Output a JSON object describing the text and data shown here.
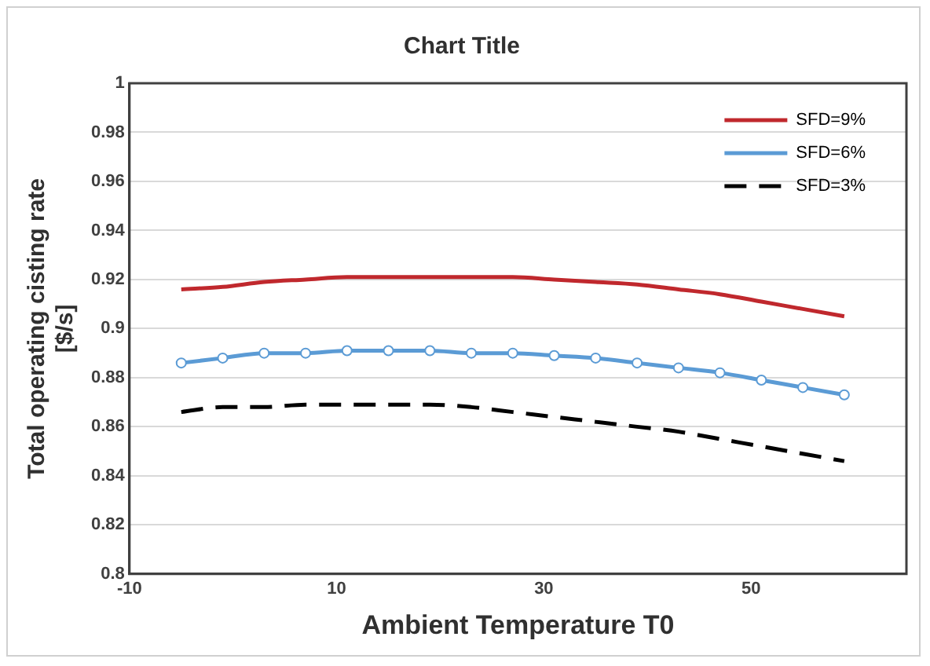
{
  "chart_data": {
    "type": "line",
    "title": "Chart Title",
    "xlabel": "Ambient Temperature T0",
    "ylabel": "Total operating cisting rate [$/s]",
    "x": [
      -5,
      -1,
      3,
      7,
      11,
      15,
      19,
      23,
      27,
      31,
      35,
      39,
      43,
      47,
      51,
      55,
      59
    ],
    "series": [
      {
        "name": "SFD=9%",
        "color": "#c0282d",
        "marker": "none",
        "line_style": "solid",
        "values": [
          0.916,
          0.917,
          0.919,
          0.92,
          0.921,
          0.921,
          0.921,
          0.921,
          0.921,
          0.92,
          0.919,
          0.918,
          0.916,
          0.914,
          0.911,
          0.908,
          0.905
        ]
      },
      {
        "name": "SFD=6%",
        "color": "#5b9bd5",
        "marker": "circle",
        "line_style": "solid",
        "values": [
          0.886,
          0.888,
          0.89,
          0.89,
          0.891,
          0.891,
          0.891,
          0.89,
          0.89,
          0.889,
          0.888,
          0.886,
          0.884,
          0.882,
          0.879,
          0.876,
          0.873
        ]
      },
      {
        "name": "SFD=3%",
        "color": "#000000",
        "marker": "none",
        "line_style": "dashed",
        "values": [
          0.866,
          0.868,
          0.868,
          0.869,
          0.869,
          0.869,
          0.869,
          0.868,
          0.866,
          0.864,
          0.862,
          0.86,
          0.858,
          0.855,
          0.852,
          0.849,
          0.846
        ]
      }
    ],
    "xlim": [
      -10,
      65
    ],
    "xticks": [
      -10,
      10,
      30,
      50
    ],
    "ylim": [
      0.8,
      1
    ],
    "yticks": [
      0.8,
      0.82,
      0.84,
      0.86,
      0.88,
      0.9,
      0.92,
      0.94,
      0.96,
      0.98,
      1
    ],
    "grid": "y",
    "legend": "top right"
  }
}
